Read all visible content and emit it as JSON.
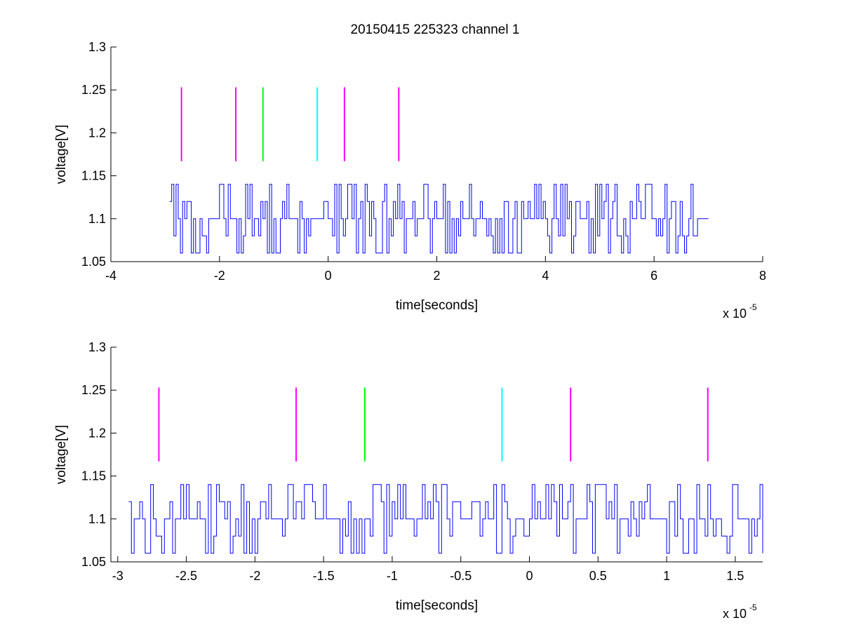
{
  "figure": {
    "title": "20150415 225323 channel 1"
  },
  "chart_data": [
    {
      "type": "line",
      "title": "20150415 225323 channel 1",
      "xlabel": "time[seconds]",
      "ylabel": "voltage[V]",
      "x_multiplier_base": "x 10",
      "x_multiplier_exp": "-5",
      "xlim": [
        -4,
        8
      ],
      "ylim": [
        1.05,
        1.3
      ],
      "xticks": [
        -4,
        -2,
        0,
        2,
        4,
        6,
        8
      ],
      "xtick_labels": [
        "-4",
        "-2",
        "0",
        "2",
        "4",
        "6",
        "8"
      ],
      "yticks": [
        1.05,
        1.1,
        1.15,
        1.2,
        1.25,
        1.3
      ],
      "ytick_labels": [
        "1.05",
        "1.1",
        "1.15",
        "1.2",
        "1.25",
        "1.3"
      ],
      "grid": false,
      "series": [
        {
          "color": "#0000ff",
          "step": 0.04,
          "x_range": [
            -2.92,
            7.0
          ],
          "levels": [
            1.06,
            1.08,
            1.1,
            1.12,
            1.14
          ],
          "seed": 20150415
        }
      ],
      "markers": [
        {
          "x": -2.7,
          "y_range": [
            1.167,
            1.253
          ],
          "color": "#ff00ff"
        },
        {
          "x": -1.7,
          "y_range": [
            1.167,
            1.253
          ],
          "color": "#ff00ff"
        },
        {
          "x": -1.2,
          "y_range": [
            1.167,
            1.253
          ],
          "color": "#00ff00"
        },
        {
          "x": -0.2,
          "y_range": [
            1.167,
            1.253
          ],
          "color": "#00ffff"
        },
        {
          "x": 0.3,
          "y_range": [
            1.167,
            1.253
          ],
          "color": "#ff00ff"
        },
        {
          "x": 1.3,
          "y_range": [
            1.167,
            1.253
          ],
          "color": "#ff00ff"
        }
      ]
    },
    {
      "type": "line",
      "title": "",
      "xlabel": "time[seconds]",
      "ylabel": "voltage[V]",
      "x_multiplier_base": "x 10",
      "x_multiplier_exp": "-5",
      "xlim": [
        -3.05,
        1.7
      ],
      "ylim": [
        1.05,
        1.3
      ],
      "xticks": [
        -3,
        -2.5,
        -2,
        -1.5,
        -1,
        -0.5,
        0,
        0.5,
        1,
        1.5
      ],
      "xtick_labels": [
        "-3",
        "-2.5",
        "-2",
        "-1.5",
        "-1",
        "-0.5",
        "0",
        "0.5",
        "1",
        "1.5"
      ],
      "yticks": [
        1.05,
        1.1,
        1.15,
        1.2,
        1.25,
        1.3
      ],
      "ytick_labels": [
        "1.05",
        "1.1",
        "1.15",
        "1.2",
        "1.25",
        "1.3"
      ],
      "grid": false,
      "series": [
        {
          "color": "#0000ff",
          "step": 0.02,
          "x_range": [
            -2.92,
            1.7
          ],
          "levels": [
            1.06,
            1.08,
            1.1,
            1.12,
            1.14
          ],
          "seed": 225323
        }
      ],
      "markers": [
        {
          "x": -2.7,
          "y_range": [
            1.167,
            1.253
          ],
          "color": "#ff00ff"
        },
        {
          "x": -1.7,
          "y_range": [
            1.167,
            1.253
          ],
          "color": "#ff00ff"
        },
        {
          "x": -1.2,
          "y_range": [
            1.167,
            1.253
          ],
          "color": "#00ff00"
        },
        {
          "x": -0.2,
          "y_range": [
            1.167,
            1.253
          ],
          "color": "#00ffff"
        },
        {
          "x": 0.3,
          "y_range": [
            1.167,
            1.253
          ],
          "color": "#ff00ff"
        },
        {
          "x": 1.3,
          "y_range": [
            1.167,
            1.253
          ],
          "color": "#ff00ff"
        }
      ]
    }
  ]
}
